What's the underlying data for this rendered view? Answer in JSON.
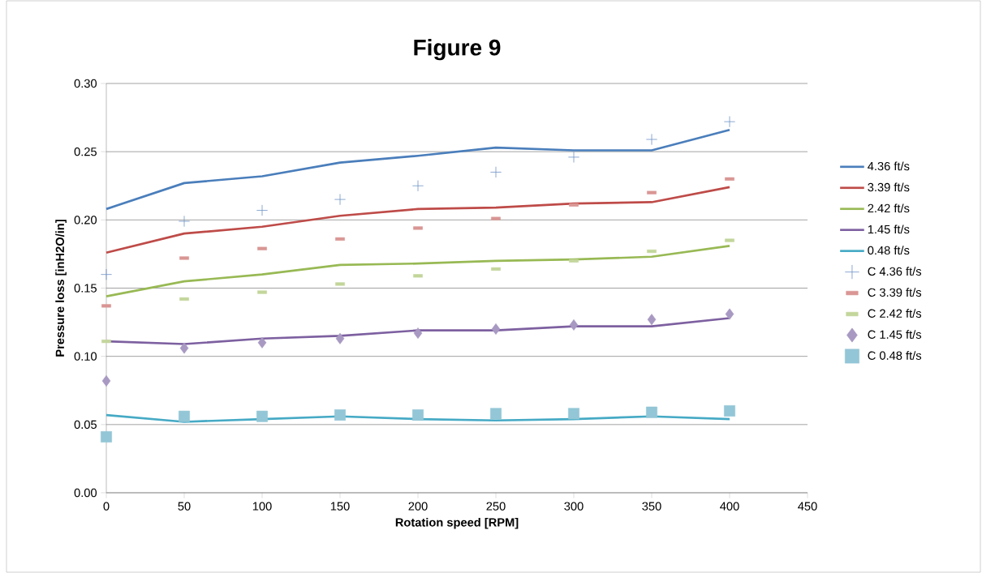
{
  "chart_data": {
    "type": "line",
    "title": "Figure 9",
    "xlabel": "Rotation speed [RPM]",
    "ylabel": "Pressure loss [inH2O/in]",
    "x": [
      0,
      50,
      100,
      150,
      200,
      250,
      300,
      350,
      400
    ],
    "series": [
      {
        "name": "4.36 ft/s",
        "marker": "none",
        "color": "#4a7ebb",
        "values": [
          0.208,
          0.227,
          0.232,
          0.242,
          0.247,
          0.253,
          0.251,
          0.251,
          0.266
        ]
      },
      {
        "name": "3.39 ft/s",
        "marker": "none",
        "color": "#be4b48",
        "values": [
          0.176,
          0.19,
          0.195,
          0.203,
          0.208,
          0.209,
          0.212,
          0.213,
          0.224
        ]
      },
      {
        "name": "2.42 ft/s",
        "marker": "none",
        "color": "#98b954",
        "values": [
          0.144,
          0.155,
          0.16,
          0.167,
          0.168,
          0.17,
          0.171,
          0.173,
          0.181
        ]
      },
      {
        "name": "1.45 ft/s",
        "marker": "none",
        "color": "#7d60a0",
        "values": [
          0.111,
          0.109,
          0.113,
          0.115,
          0.119,
          0.119,
          0.122,
          0.122,
          0.128
        ]
      },
      {
        "name": "0.48 ft/s",
        "marker": "none",
        "color": "#46aac5",
        "values": [
          0.057,
          0.052,
          0.054,
          0.056,
          0.054,
          0.053,
          0.054,
          0.056,
          0.054
        ]
      },
      {
        "name": "C 4.36 ft/s",
        "type": "scatter",
        "marker": "cross",
        "color": "#6f93c6",
        "values": [
          0.16,
          0.199,
          0.207,
          0.215,
          0.225,
          0.235,
          0.246,
          0.259,
          0.272
        ]
      },
      {
        "name": "C 3.39 ft/s",
        "type": "scatter",
        "color": "#d99694",
        "values": [
          0.137,
          0.172,
          0.179,
          0.186,
          0.194,
          0.201,
          0.211,
          0.22,
          0.23
        ]
      },
      {
        "name": "C 2.42 ft/s",
        "type": "scatter",
        "color": "#c3d69b",
        "values": [
          0.111,
          0.142,
          0.147,
          0.153,
          0.159,
          0.164,
          0.17,
          0.177,
          0.185
        ]
      },
      {
        "name": "C 1.45 ft/s",
        "type": "scatter",
        "marker": "diamond",
        "color": "#a899c2",
        "values": [
          0.082,
          0.106,
          0.11,
          0.113,
          0.117,
          0.12,
          0.123,
          0.127,
          0.131
        ]
      },
      {
        "name": "C 0.48 ft/s",
        "type": "scatter",
        "marker": "square",
        "color": "#93c6d6",
        "values": [
          0.041,
          0.056,
          0.056,
          0.057,
          0.057,
          0.058,
          0.058,
          0.059,
          0.06
        ]
      }
    ],
    "xlim": [
      0,
      450
    ],
    "xticks": [
      0,
      50,
      100,
      150,
      200,
      250,
      300,
      350,
      400,
      450
    ],
    "ylim": [
      0,
      0.3
    ],
    "yticks": [
      {
        "value": 0,
        "label": "0.00"
      },
      {
        "value": 0.05,
        "label": "0.05"
      },
      {
        "value": 0.1,
        "label": "0.10"
      },
      {
        "value": 0.15,
        "label": "0.15"
      },
      {
        "value": 0.2,
        "label": "0.20"
      },
      {
        "value": 0.25,
        "label": "0.25"
      },
      {
        "value": 0.3,
        "label": "0.30"
      }
    ],
    "grid": "y",
    "legend": "right"
  }
}
